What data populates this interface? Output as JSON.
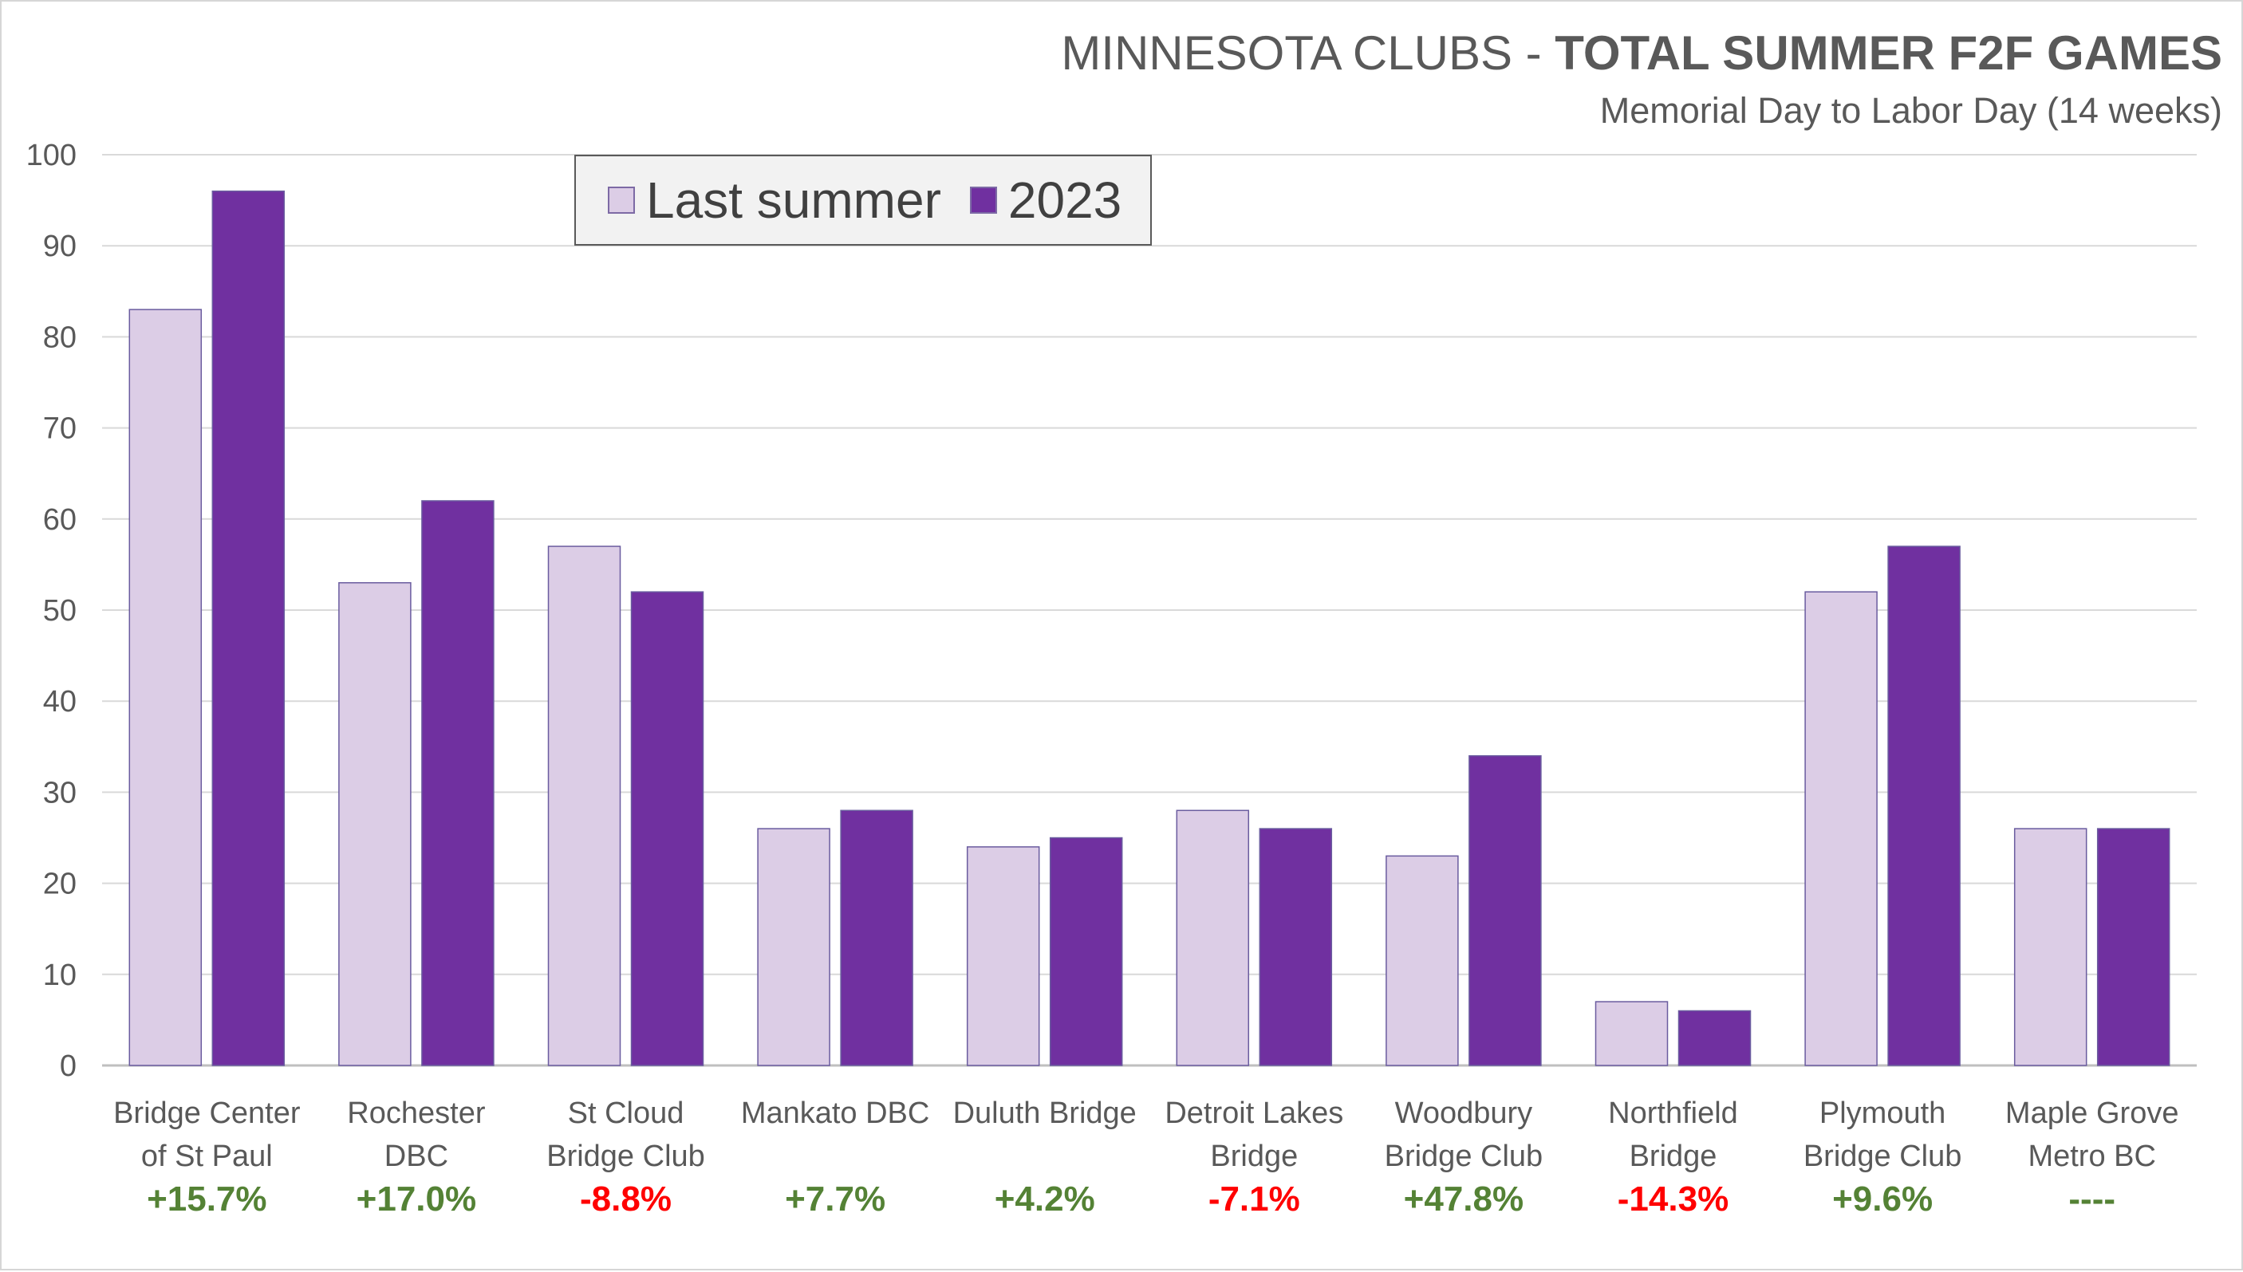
{
  "title": {
    "prefix": "MINNESOTA CLUBS - ",
    "bold": "TOTAL SUMMER F2F GAMES",
    "subtitle": "Memorial Day to Labor Day (14 weeks)"
  },
  "colors": {
    "last_summer": "#dccde6",
    "y2023": "#7030a0",
    "bar_outline": "#6a5c9f",
    "positive": "#548235",
    "negative": "#ff0000",
    "neutral": "#548235",
    "grid": "#d9d9d9",
    "axis": "#bfbfbf"
  },
  "chart_data": {
    "type": "bar",
    "title": "MINNESOTA CLUBS - TOTAL SUMMER F2F GAMES",
    "subtitle": "Memorial Day to Labor Day (14 weeks)",
    "categories": [
      [
        "Bridge Center",
        "of St Paul"
      ],
      [
        "Rochester",
        "DBC"
      ],
      [
        "St Cloud",
        "Bridge Club"
      ],
      [
        "Mankato DBC"
      ],
      [
        "Duluth Bridge"
      ],
      [
        "Detroit Lakes",
        "Bridge"
      ],
      [
        "Woodbury",
        "Bridge Club"
      ],
      [
        "Northfield",
        "Bridge"
      ],
      [
        "Plymouth",
        "Bridge Club"
      ],
      [
        "Maple Grove",
        "Metro BC"
      ]
    ],
    "series": [
      {
        "name": "Last summer",
        "values": [
          83,
          53,
          57,
          26,
          24,
          28,
          23,
          7,
          52,
          26
        ]
      },
      {
        "name": "2023",
        "values": [
          96,
          62,
          52,
          28,
          25,
          26,
          34,
          6,
          57,
          26
        ]
      }
    ],
    "change_labels": [
      "+15.7%",
      "+17.0%",
      "-8.8%",
      "+7.7%",
      "+4.2%",
      "-7.1%",
      "+47.8%",
      "-14.3%",
      "+9.6%",
      "----"
    ],
    "yticks": [
      0,
      10,
      20,
      30,
      40,
      50,
      60,
      70,
      80,
      90,
      100
    ],
    "ylim": [
      0,
      100
    ],
    "grid": true,
    "legend_position": "top-left"
  }
}
